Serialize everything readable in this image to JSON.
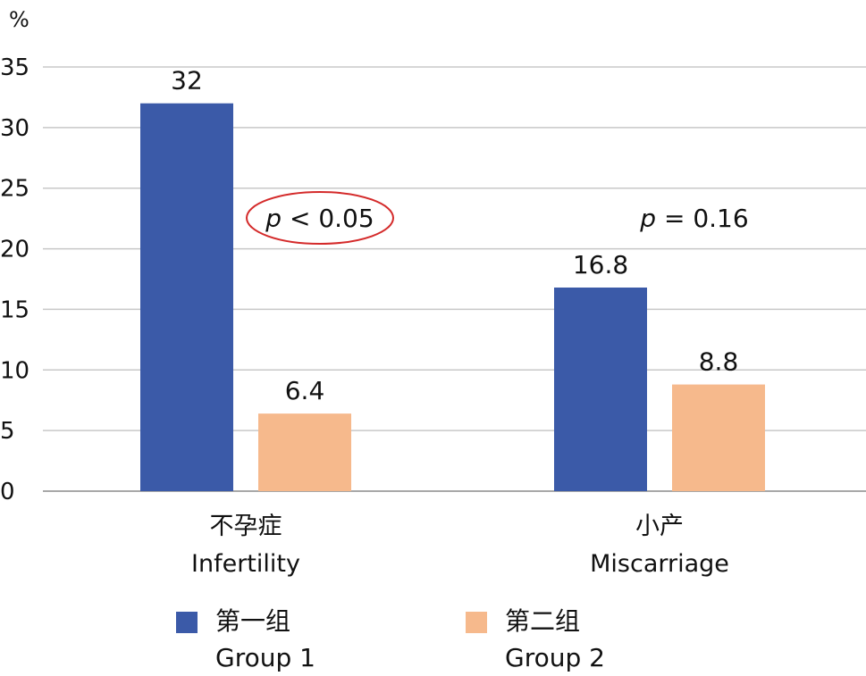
{
  "chart_data": {
    "type": "bar",
    "unit": "%",
    "ylim": [
      0,
      35
    ],
    "yticks": [
      0,
      5,
      10,
      15,
      20,
      25,
      30,
      35
    ],
    "grid": true,
    "categories": [
      {
        "zh": "不孕症",
        "en": "Infertility"
      },
      {
        "zh": "小产",
        "en": "Miscarriage"
      }
    ],
    "series": [
      {
        "name_zh": "第一组",
        "name_en": "Group 1",
        "color": "#3b5aa8",
        "values": [
          32,
          16.8
        ],
        "labels": [
          "32",
          "16.8"
        ]
      },
      {
        "name_zh": "第二组",
        "name_en": "Group 2",
        "color": "#f6b98c",
        "values": [
          6.4,
          8.8
        ],
        "labels": [
          "6.4",
          "8.8"
        ]
      }
    ],
    "annotations": [
      {
        "category": 0,
        "italic": "p",
        "rest": " < 0.05",
        "circled": true,
        "circle_color": "#d42a2a"
      },
      {
        "category": 1,
        "italic": "p",
        "rest": " = 0.16",
        "circled": false
      }
    ],
    "legend_position": "bottom"
  }
}
